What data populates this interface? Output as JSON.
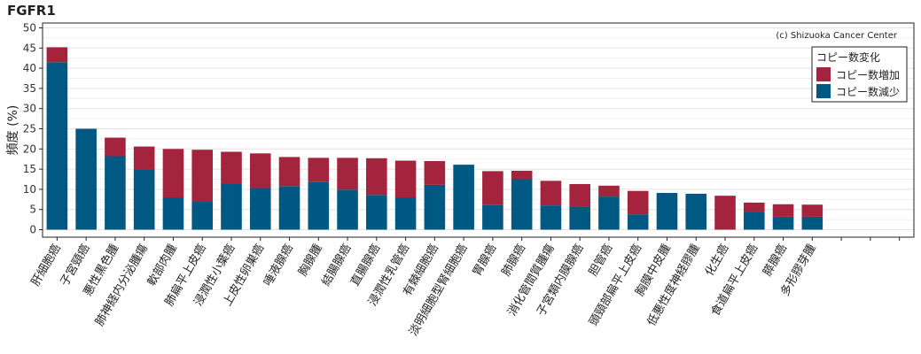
{
  "chart_data": {
    "type": "bar",
    "stacked": true,
    "title": "FGFR1",
    "ylabel": "頻度 (%)",
    "xlabel": "",
    "ylim": [
      0,
      50
    ],
    "yticks": [
      0,
      5,
      10,
      15,
      20,
      25,
      30,
      35,
      40,
      45,
      50
    ],
    "grid": true,
    "credit": "(c) Shizuoka Cancer Center",
    "legend": {
      "title": "コピー数変化",
      "position": "top-right"
    },
    "categories": [
      "肝細胞癌",
      "子宮頸癌",
      "悪性黒色腫",
      "肺神経内分泌腫瘍",
      "軟部肉腫",
      "肺扁平上皮癌",
      "浸潤性小葉癌",
      "上皮性卵巣癌",
      "唾液腺癌",
      "胸腺腫",
      "結腸腺癌",
      "直腸腺癌",
      "浸潤性乳管癌",
      "有棘細胞癌",
      "淡明細胞型腎細胞癌",
      "胃腺癌",
      "肺腺癌",
      "消化管間質腫瘍",
      "子宮類内膜腺癌",
      "胆管癌",
      "頭頸部扁平上皮癌",
      "胸膜中皮腫",
      "低悪性度神経膠腫",
      "化生癌",
      "食道扁平上皮癌",
      "膵腺癌",
      "多形膠芽腫",
      "",
      "",
      ""
    ],
    "colors": {
      "gain": "#A5243D",
      "loss": "#005982"
    },
    "series": [
      {
        "name": "コピー数減少",
        "key": "loss",
        "values": [
          41.5,
          25.0,
          18.2,
          14.8,
          8.0,
          6.9,
          11.5,
          10.3,
          10.8,
          11.8,
          9.9,
          8.6,
          8.0,
          11.1,
          16.1,
          6.1,
          12.5,
          6.0,
          5.6,
          8.2,
          3.8,
          9.1,
          8.9,
          0,
          4.4,
          3.2,
          3.2,
          0,
          0,
          0
        ]
      },
      {
        "name": "コピー数増加",
        "key": "gain",
        "values": [
          3.7,
          0,
          4.6,
          5.8,
          12.0,
          12.9,
          7.8,
          8.6,
          7.2,
          6.0,
          7.9,
          9.1,
          9.1,
          5.9,
          0,
          8.4,
          2.1,
          6.1,
          5.7,
          2.7,
          5.8,
          0,
          0,
          8.4,
          2.3,
          3.1,
          3.0,
          0,
          0,
          0
        ]
      }
    ]
  }
}
